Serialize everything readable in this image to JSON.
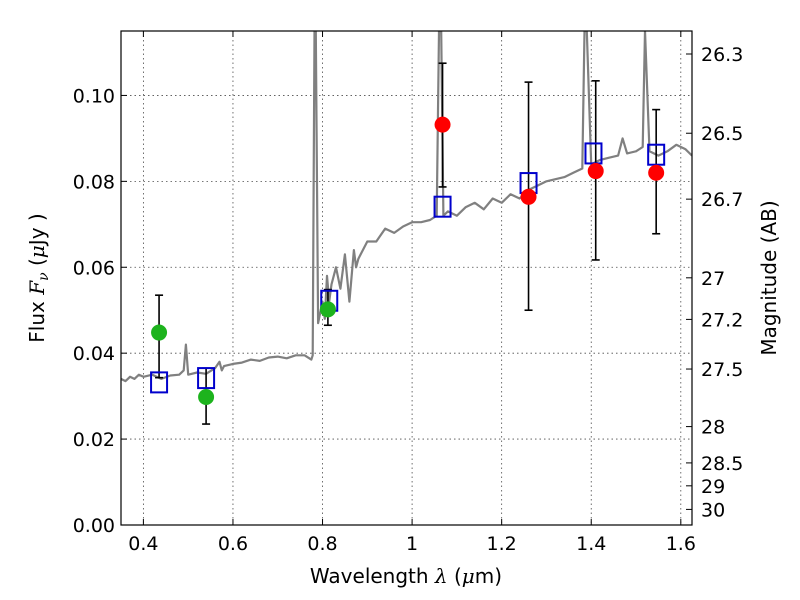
{
  "chart_data": {
    "type": "scatter",
    "xlabel_prefix": "Wavelength  ",
    "xlabel_sym": "λ",
    "xlabel_unit_open": " (",
    "xlabel_unit_mu": "μ",
    "xlabel_unit_close": "m)",
    "ylabel_prefix": "Flux  ",
    "ylabel_sym": "F",
    "ylabel_sub": "ν",
    "ylabel_unit_open": "  (",
    "ylabel_unit_mu": "μ",
    "ylabel_unit_close": "Jy )",
    "y2label": "Magnitude (AB)",
    "xlim": [
      0.35,
      1.625
    ],
    "ylim": [
      0.0,
      0.115
    ],
    "x_ticks": [
      0.4,
      0.6,
      0.8,
      1.0,
      1.2,
      1.4,
      1.6
    ],
    "x_tick_labels": [
      "0.4",
      "0.6",
      "0.8",
      "1",
      "1.2",
      "1.4",
      "1.6"
    ],
    "y_ticks": [
      0.0,
      0.02,
      0.04,
      0.06,
      0.08,
      0.1
    ],
    "y_tick_labels": [
      "0.00",
      "0.02",
      "0.04",
      "0.06",
      "0.08",
      "0.10"
    ],
    "y2_ticks": [
      26.3,
      26.5,
      26.7,
      27.0,
      27.2,
      27.5,
      28.0,
      28.5,
      29.0,
      30.0
    ],
    "y2_tick_labels": [
      "26.3",
      "26.5",
      "26.7",
      "27",
      "27.2",
      "27.5",
      "28",
      "28.5",
      "29",
      "30"
    ],
    "grid": true,
    "colors": {
      "spectrum": "#808080",
      "model_box": "#0000cc",
      "green_points": "#1db31d",
      "red_points": "#ff0000",
      "errorbar": "#000000"
    },
    "series": [
      {
        "marker": "green-circle",
        "x": [
          0.435,
          0.54,
          0.812
        ],
        "y": [
          0.0448,
          0.0298,
          0.0502
        ],
        "yerr_low": [
          0.0105,
          0.0063,
          0.0037
        ],
        "yerr_high": [
          0.0087,
          0.0067,
          0.0046
        ]
      },
      {
        "marker": "red-circle",
        "x": [
          1.068,
          1.26,
          1.41,
          1.545
        ],
        "y": [
          0.0932,
          0.0764,
          0.0824,
          0.082
        ],
        "yerr_low": [
          0.0145,
          0.0264,
          0.0207,
          0.0142
        ],
        "yerr_high": [
          0.0143,
          0.0267,
          0.021,
          0.0147
        ]
      },
      {
        "marker": "blue-open-square",
        "x": [
          0.435,
          0.54,
          0.815,
          1.068,
          1.26,
          1.405,
          1.545
        ],
        "y": [
          0.0332,
          0.0342,
          0.0522,
          0.0741,
          0.0796,
          0.0865,
          0.0862
        ]
      },
      {
        "marker": "grey-line",
        "x": [
          0.35,
          0.36,
          0.37,
          0.38,
          0.39,
          0.4,
          0.42,
          0.44,
          0.46,
          0.48,
          0.49,
          0.495,
          0.5,
          0.52,
          0.54,
          0.56,
          0.57,
          0.575,
          0.58,
          0.6,
          0.62,
          0.64,
          0.66,
          0.68,
          0.7,
          0.72,
          0.74,
          0.76,
          0.775,
          0.778,
          0.782,
          0.785,
          0.79,
          0.8,
          0.805,
          0.81,
          0.815,
          0.82,
          0.83,
          0.84,
          0.85,
          0.86,
          0.87,
          0.875,
          0.88,
          0.9,
          0.92,
          0.94,
          0.96,
          0.98,
          1.0,
          1.02,
          1.04,
          1.055,
          1.06,
          1.065,
          1.07,
          1.08,
          1.1,
          1.12,
          1.14,
          1.16,
          1.18,
          1.2,
          1.22,
          1.24,
          1.26,
          1.28,
          1.3,
          1.32,
          1.34,
          1.36,
          1.38,
          1.385,
          1.39,
          1.4,
          1.42,
          1.44,
          1.46,
          1.47,
          1.48,
          1.5,
          1.515,
          1.52,
          1.53,
          1.55,
          1.57,
          1.59,
          1.61,
          1.625
        ],
        "y": [
          0.034,
          0.0335,
          0.0345,
          0.034,
          0.035,
          0.0345,
          0.035,
          0.034,
          0.0348,
          0.035,
          0.036,
          0.042,
          0.035,
          0.0355,
          0.0352,
          0.0365,
          0.038,
          0.036,
          0.037,
          0.0375,
          0.0378,
          0.0385,
          0.0382,
          0.039,
          0.0392,
          0.0388,
          0.0395,
          0.0395,
          0.0385,
          0.0395,
          0.115,
          0.115,
          0.047,
          0.052,
          0.048,
          0.058,
          0.052,
          0.056,
          0.06,
          0.055,
          0.063,
          0.052,
          0.064,
          0.06,
          0.062,
          0.066,
          0.066,
          0.069,
          0.068,
          0.0695,
          0.0705,
          0.0705,
          0.071,
          0.072,
          0.115,
          0.115,
          0.072,
          0.073,
          0.072,
          0.074,
          0.075,
          0.0735,
          0.076,
          0.075,
          0.077,
          0.076,
          0.078,
          0.079,
          0.08,
          0.0805,
          0.081,
          0.082,
          0.083,
          0.115,
          0.115,
          0.084,
          0.085,
          0.0855,
          0.086,
          0.09,
          0.0865,
          0.087,
          0.088,
          0.115,
          0.087,
          0.086,
          0.087,
          0.0885,
          0.0875,
          0.086
        ]
      }
    ]
  }
}
